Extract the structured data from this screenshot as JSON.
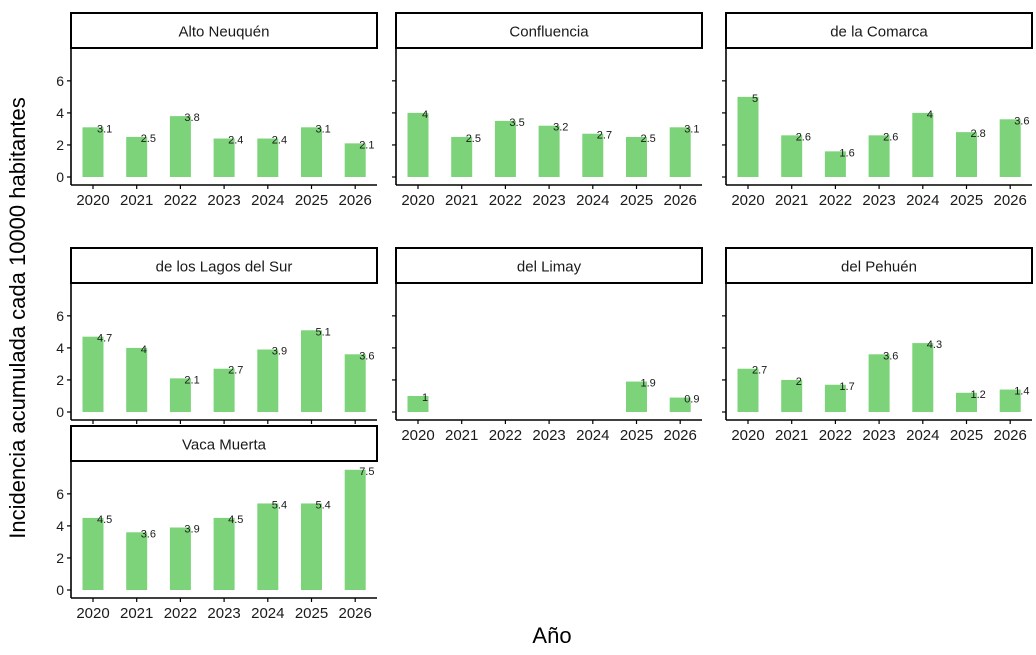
{
  "chart_data": {
    "type": "bar",
    "xlabel": "Año",
    "ylabel": "Incidencia acumulada cada 10000 habitantes",
    "categories": [
      "2020",
      "2021",
      "2022",
      "2023",
      "2024",
      "2025",
      "2026"
    ],
    "yticks": [
      0,
      2,
      4,
      6
    ],
    "ylim": [
      0,
      7.8
    ],
    "bar_color": "#7dd37a",
    "panels": [
      {
        "name": "Alto Neuquén",
        "values": [
          3.1,
          2.5,
          3.8,
          2.4,
          2.4,
          3.1,
          2.1
        ]
      },
      {
        "name": "Confluencia",
        "values": [
          4,
          2.5,
          3.5,
          3.2,
          2.7,
          2.5,
          3.1
        ]
      },
      {
        "name": "de la Comarca",
        "values": [
          5,
          2.6,
          1.6,
          2.6,
          4,
          2.8,
          3.6
        ]
      },
      {
        "name": "de los Lagos del Sur",
        "values": [
          4.7,
          4,
          2.1,
          2.7,
          3.9,
          5.1,
          3.6
        ]
      },
      {
        "name": "del Limay",
        "values": [
          1,
          null,
          null,
          null,
          null,
          1.9,
          0.9
        ]
      },
      {
        "name": "del Pehuén",
        "values": [
          2.7,
          2,
          1.7,
          3.6,
          4.3,
          1.2,
          1.4
        ]
      },
      {
        "name": "Vaca Muerta",
        "values": [
          4.5,
          3.6,
          3.9,
          4.5,
          5.4,
          5.4,
          7.5
        ]
      }
    ]
  }
}
